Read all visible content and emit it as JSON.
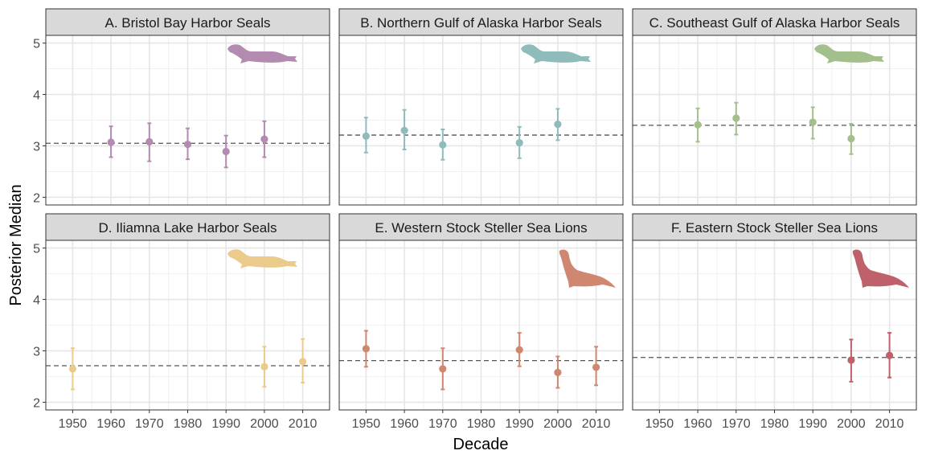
{
  "figure": {
    "ylabel": "Posterior Median",
    "xlabel": "Decade"
  },
  "chart_data": [
    {
      "type": "scatter",
      "title": "A. Bristol Bay Harbor Seals",
      "color": "#b38ab0",
      "icon": "harbor-seal-icon",
      "x_ticks": [
        1950,
        1960,
        1970,
        1980,
        1990,
        2000,
        2010
      ],
      "y_ticks": [
        2,
        3,
        4,
        5
      ],
      "xlim": [
        1943,
        2017
      ],
      "ylim": [
        1.85,
        5.15
      ],
      "reference_line": 3.05,
      "points": [
        {
          "x": 1960,
          "y": 3.07,
          "lo": 2.78,
          "hi": 3.38
        },
        {
          "x": 1970,
          "y": 3.08,
          "lo": 2.7,
          "hi": 3.44
        },
        {
          "x": 1980,
          "y": 3.03,
          "lo": 2.74,
          "hi": 3.34
        },
        {
          "x": 1990,
          "y": 2.89,
          "lo": 2.58,
          "hi": 3.2
        },
        {
          "x": 2000,
          "y": 3.13,
          "lo": 2.78,
          "hi": 3.48
        }
      ]
    },
    {
      "type": "scatter",
      "title": "B. Northern Gulf of Alaska Harbor Seals",
      "color": "#8fbcbb",
      "icon": "harbor-seal-icon",
      "x_ticks": [
        1950,
        1960,
        1970,
        1980,
        1990,
        2000,
        2010
      ],
      "y_ticks": [
        2,
        3,
        4,
        5
      ],
      "xlim": [
        1943,
        2017
      ],
      "ylim": [
        1.85,
        5.15
      ],
      "reference_line": 3.21,
      "points": [
        {
          "x": 1950,
          "y": 3.19,
          "lo": 2.87,
          "hi": 3.55
        },
        {
          "x": 1960,
          "y": 3.3,
          "lo": 2.93,
          "hi": 3.7
        },
        {
          "x": 1970,
          "y": 3.02,
          "lo": 2.73,
          "hi": 3.32
        },
        {
          "x": 1990,
          "y": 3.06,
          "lo": 2.76,
          "hi": 3.37
        },
        {
          "x": 2000,
          "y": 3.42,
          "lo": 3.11,
          "hi": 3.72
        }
      ]
    },
    {
      "type": "scatter",
      "title": "C. Southeast Gulf of Alaska Harbor Seals",
      "color": "#a3bf8c",
      "icon": "harbor-seal-icon",
      "x_ticks": [
        1950,
        1960,
        1970,
        1980,
        1990,
        2000,
        2010
      ],
      "y_ticks": [
        2,
        3,
        4,
        5
      ],
      "xlim": [
        1943,
        2017
      ],
      "ylim": [
        1.85,
        5.15
      ],
      "reference_line": 3.4,
      "points": [
        {
          "x": 1960,
          "y": 3.41,
          "lo": 3.08,
          "hi": 3.73
        },
        {
          "x": 1970,
          "y": 3.54,
          "lo": 3.22,
          "hi": 3.84
        },
        {
          "x": 1990,
          "y": 3.46,
          "lo": 3.14,
          "hi": 3.75
        },
        {
          "x": 2000,
          "y": 3.14,
          "lo": 2.84,
          "hi": 3.43
        }
      ]
    },
    {
      "type": "scatter",
      "title": "D. Iliamna Lake Harbor Seals",
      "color": "#ebcb8b",
      "icon": "harbor-seal-icon",
      "x_ticks": [
        1950,
        1960,
        1970,
        1980,
        1990,
        2000,
        2010
      ],
      "y_ticks": [
        2,
        3,
        4,
        5
      ],
      "xlim": [
        1943,
        2017
      ],
      "ylim": [
        1.85,
        5.15
      ],
      "reference_line": 2.71,
      "points": [
        {
          "x": 1950,
          "y": 2.65,
          "lo": 2.25,
          "hi": 3.05
        },
        {
          "x": 2000,
          "y": 2.69,
          "lo": 2.3,
          "hi": 3.08
        },
        {
          "x": 2010,
          "y": 2.79,
          "lo": 2.38,
          "hi": 3.23
        }
      ]
    },
    {
      "type": "scatter",
      "title": "E. Western Stock Steller Sea Lions",
      "color": "#d08770",
      "icon": "sea-lion-icon",
      "x_ticks": [
        1950,
        1960,
        1970,
        1980,
        1990,
        2000,
        2010
      ],
      "y_ticks": [
        2,
        3,
        4,
        5
      ],
      "xlim": [
        1943,
        2017
      ],
      "ylim": [
        1.85,
        5.15
      ],
      "reference_line": 2.81,
      "points": [
        {
          "x": 1950,
          "y": 3.04,
          "lo": 2.69,
          "hi": 3.39
        },
        {
          "x": 1970,
          "y": 2.65,
          "lo": 2.25,
          "hi": 3.05
        },
        {
          "x": 1990,
          "y": 3.02,
          "lo": 2.7,
          "hi": 3.35
        },
        {
          "x": 2000,
          "y": 2.58,
          "lo": 2.28,
          "hi": 2.89
        },
        {
          "x": 2010,
          "y": 2.68,
          "lo": 2.33,
          "hi": 3.08
        }
      ]
    },
    {
      "type": "scatter",
      "title": "F. Eastern Stock Steller Sea Lions",
      "color": "#bf616a",
      "icon": "sea-lion-icon",
      "x_ticks": [
        1950,
        1960,
        1970,
        1980,
        1990,
        2000,
        2010
      ],
      "y_ticks": [
        2,
        3,
        4,
        5
      ],
      "xlim": [
        1943,
        2017
      ],
      "ylim": [
        1.85,
        5.15
      ],
      "reference_line": 2.87,
      "points": [
        {
          "x": 2000,
          "y": 2.82,
          "lo": 2.4,
          "hi": 3.22
        },
        {
          "x": 2010,
          "y": 2.91,
          "lo": 2.48,
          "hi": 3.35
        }
      ]
    }
  ]
}
